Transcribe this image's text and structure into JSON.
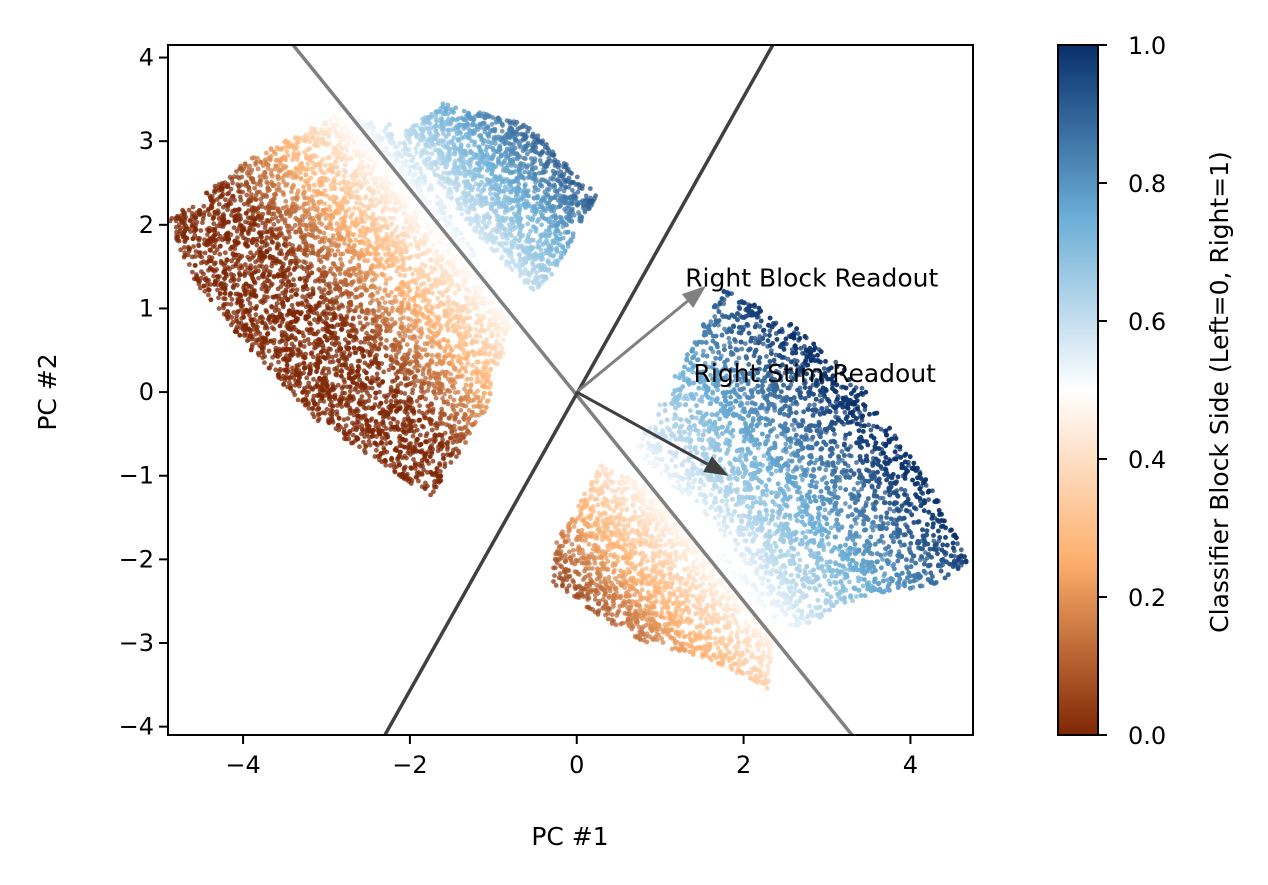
{
  "chart_data": {
    "type": "scatter",
    "title": "",
    "xlabel": "PC #1",
    "ylabel": "PC #2",
    "xlim": [
      -4.9,
      4.75
    ],
    "ylim": [
      -4.1,
      4.15
    ],
    "xticks": [
      -4,
      -2,
      0,
      2,
      4
    ],
    "yticks": [
      -4,
      -3,
      -2,
      -1,
      0,
      1,
      2,
      3,
      4
    ],
    "xtick_labels": [
      "−4",
      "−2",
      "0",
      "2",
      "4"
    ],
    "ytick_labels": [
      "−4",
      "−3",
      "−2",
      "−1",
      "0",
      "1",
      "2",
      "3",
      "4"
    ],
    "grid": false,
    "colormap": {
      "name": "orange-to-blue diverging",
      "low_color": "#7f2704",
      "mid_low_color": "#fdae6b",
      "mid_color": "#ffffff",
      "mid_high_color": "#6baed6",
      "high_color": "#08306b"
    },
    "colorbar": {
      "label": "Classifier Block Side (Left=0, Right=1)",
      "range": [
        0.0,
        1.0
      ],
      "ticks": [
        "0.0",
        "0.2",
        "0.4",
        "0.6",
        "0.8",
        "1.0"
      ],
      "tick_values": [
        0.0,
        0.2,
        0.4,
        0.6,
        0.8,
        1.0
      ]
    },
    "clusters": [
      {
        "center": [
          -2.95,
          1.45
        ],
        "color_range": [
          0.0,
          0.5
        ],
        "extent": "upper-left lobe"
      },
      {
        "center": [
          -0.9,
          2.6
        ],
        "color_range": [
          0.5,
          0.85
        ],
        "extent": "upper wedge"
      },
      {
        "center": [
          1.3,
          -2.3
        ],
        "color_range": [
          0.15,
          0.55
        ],
        "extent": "lower wedge"
      },
      {
        "center": [
          2.9,
          -0.6
        ],
        "color_range": [
          0.5,
          1.0
        ],
        "extent": "right lobe"
      }
    ],
    "lines": [
      {
        "name": "",
        "from": [
          -3.4,
          4.15
        ],
        "to": [
          3.3,
          -4.1
        ],
        "color": "#808080"
      },
      {
        "name": "",
        "from": [
          -2.3,
          -4.1
        ],
        "to": [
          2.35,
          4.15
        ],
        "color": "#404040"
      }
    ],
    "arrows": [
      {
        "label": "Right Block Readout",
        "from": [
          0,
          0
        ],
        "to": [
          1.55,
          1.27
        ],
        "color": "#808080",
        "label_at": [
          1.3,
          1.26
        ]
      },
      {
        "label": "Right Stim Readout",
        "from": [
          0,
          0
        ],
        "to": [
          1.82,
          -1.0
        ],
        "color": "#404040",
        "label_at": [
          1.4,
          0.12
        ]
      }
    ]
  }
}
